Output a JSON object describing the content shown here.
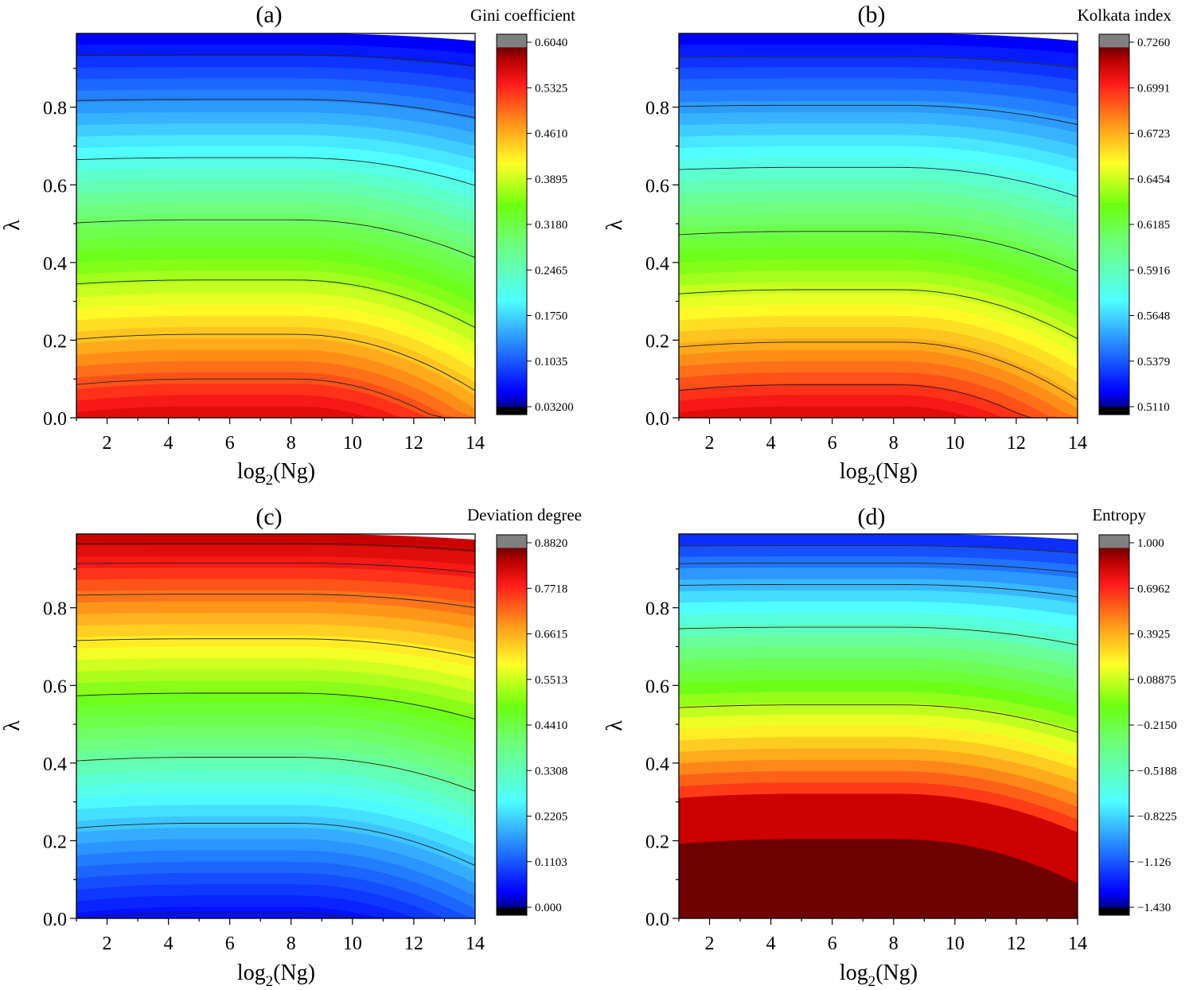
{
  "chart_data": [
    {
      "type": "heatmap",
      "panel_label": "(a)",
      "colorbar_title": "Gini coefficient",
      "xlabel": "log",
      "xlabel_sub": "2",
      "xlabel_tail": "(Ng)",
      "ylabel": "λ",
      "xlim": [
        1,
        14
      ],
      "ylim": [
        0,
        0.99
      ],
      "x_ticks": [
        2,
        4,
        6,
        8,
        10,
        12,
        14
      ],
      "y_ticks": [
        "0.0",
        "0.2",
        "0.4",
        "0.6",
        "0.8"
      ],
      "y_tick_values": [
        0,
        0.2,
        0.4,
        0.6,
        0.8
      ],
      "colorbar_ticks": [
        "0.6040",
        "0.5325",
        "0.4610",
        "0.3895",
        "0.3180",
        "0.2465",
        "0.1750",
        "0.1035",
        "0.03200"
      ],
      "value_range": [
        0.032,
        0.604
      ],
      "colormap": "jet-reversed (red = high, blue = low)",
      "high_color_end": "low-lambda",
      "curvature": 0.45,
      "contour_levels_lambda": [
        0.1,
        0.215,
        0.355,
        0.51,
        0.67,
        0.82,
        0.935
      ]
    },
    {
      "type": "heatmap",
      "panel_label": "(b)",
      "colorbar_title": "Kolkata index",
      "xlabel": "log",
      "xlabel_sub": "2",
      "xlabel_tail": "(Ng)",
      "ylabel": "λ",
      "xlim": [
        1,
        14
      ],
      "ylim": [
        0,
        0.99
      ],
      "x_ticks": [
        2,
        4,
        6,
        8,
        10,
        12,
        14
      ],
      "y_ticks": [
        "0.0",
        "0.2",
        "0.4",
        "0.6",
        "0.8"
      ],
      "y_tick_values": [
        0,
        0.2,
        0.4,
        0.6,
        0.8
      ],
      "colorbar_ticks": [
        "0.7260",
        "0.6991",
        "0.6723",
        "0.6454",
        "0.6185",
        "0.5916",
        "0.5648",
        "0.5379",
        "0.5110"
      ],
      "value_range": [
        0.511,
        0.726
      ],
      "colormap": "jet-reversed (red = high, blue = low)",
      "high_color_end": "low-lambda",
      "curvature": 0.45,
      "contour_levels_lambda": [
        0.085,
        0.195,
        0.33,
        0.48,
        0.645,
        0.805,
        0.93
      ]
    },
    {
      "type": "heatmap",
      "panel_label": "(c)",
      "colorbar_title": "Deviation degree",
      "xlabel": "log",
      "xlabel_sub": "2",
      "xlabel_tail": "(Ng)",
      "ylabel": "λ",
      "xlim": [
        1,
        14
      ],
      "ylim": [
        0,
        0.99
      ],
      "x_ticks": [
        2,
        4,
        6,
        8,
        10,
        12,
        14
      ],
      "y_ticks": [
        "0.0",
        "0.2",
        "0.4",
        "0.6",
        "0.8"
      ],
      "y_tick_values": [
        0,
        0.2,
        0.4,
        0.6,
        0.8
      ],
      "colorbar_ticks": [
        "0.8820",
        "0.7718",
        "0.6615",
        "0.5513",
        "0.4410",
        "0.3308",
        "0.2205",
        "0.1103",
        "0.000"
      ],
      "value_range": [
        0.0,
        0.882
      ],
      "colormap": "jet-reversed (red = high, blue = low)",
      "high_color_end": "high-lambda",
      "curvature": 0.35,
      "contour_levels_lambda": [
        0.015,
        0.245,
        0.415,
        0.58,
        0.72,
        0.835,
        0.915,
        0.965
      ]
    },
    {
      "type": "heatmap",
      "panel_label": "(d)",
      "colorbar_title": "Entropy",
      "xlabel": "log",
      "xlabel_sub": "2",
      "xlabel_tail": "(Ng)",
      "ylabel": "λ",
      "xlim": [
        1,
        14
      ],
      "ylim": [
        0,
        0.99
      ],
      "x_ticks": [
        2,
        4,
        6,
        8,
        10,
        12,
        14
      ],
      "y_ticks": [
        "0.0",
        "0.2",
        "0.4",
        "0.6",
        "0.8"
      ],
      "y_tick_values": [
        0,
        0.2,
        0.4,
        0.6,
        0.8
      ],
      "colorbar_ticks": [
        "1.000",
        "0.6962",
        "0.3925",
        "0.08875",
        "−0.2150",
        "−0.5188",
        "−0.8225",
        "−1.126",
        "−1.430"
      ],
      "value_range": [
        -1.43,
        1.0
      ],
      "colormap": "jet-reversed (red = high, blue = low)",
      "high_color_end": "low-lambda-saturated",
      "curvature": 0.35,
      "contour_levels_lambda": [
        0.55,
        0.75,
        0.86,
        0.915,
        0.96
      ]
    }
  ]
}
